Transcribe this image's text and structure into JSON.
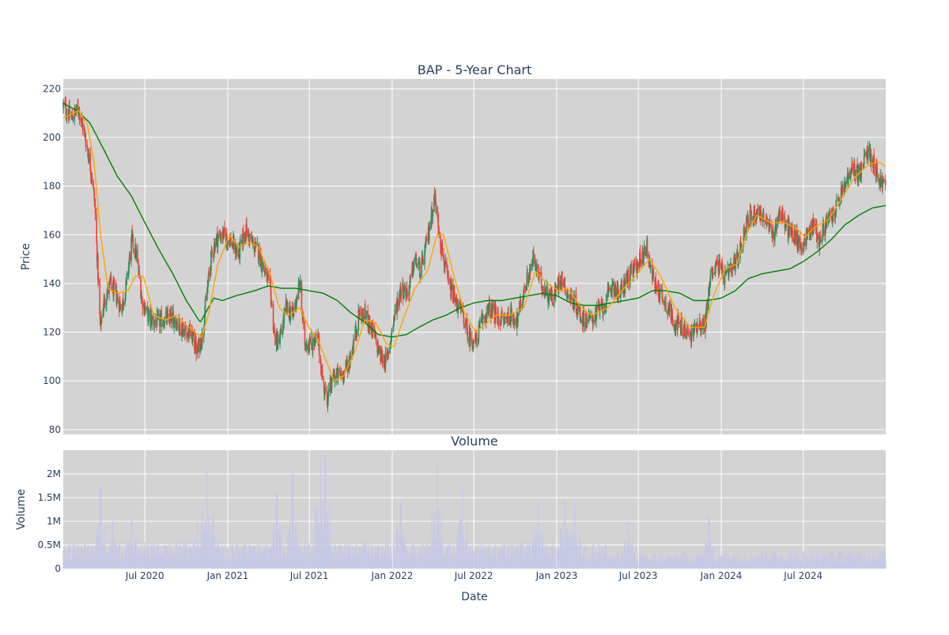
{
  "chart_data": [
    {
      "type": "candlestick",
      "title": "BAP - 5-Year Chart",
      "ylabel": "Price",
      "ylim": [
        78,
        224
      ],
      "yticks": [
        80,
        100,
        120,
        140,
        160,
        180,
        200,
        220
      ],
      "x_start": "2020-01-02",
      "x_end": "2024-12-31",
      "xtick_labels": [
        "Jul 2020",
        "Jan 2021",
        "Jul 2021",
        "Jan 2022",
        "Jul 2022",
        "Jan 2023",
        "Jul 2023",
        "Jan 2024",
        "Jul 2024"
      ],
      "xtick_dates": [
        "2020-07-01",
        "2021-01-01",
        "2021-07-01",
        "2022-01-01",
        "2022-07-01",
        "2023-01-01",
        "2023-07-01",
        "2024-01-01",
        "2024-07-01"
      ],
      "grid": true,
      "colors": {
        "up": "#2e8b57",
        "down": "#ef4136",
        "ma_short": "#ffa500",
        "ma_long": "#008000",
        "plot_bg": "#d3d3d3",
        "grid": "#ffffff"
      },
      "close_keypoints": [
        [
          "2020-01-02",
          213
        ],
        [
          "2020-01-20",
          208
        ],
        [
          "2020-02-05",
          212
        ],
        [
          "2020-02-20",
          200
        ],
        [
          "2020-03-05",
          185
        ],
        [
          "2020-03-12",
          172
        ],
        [
          "2020-03-18",
          148
        ],
        [
          "2020-03-24",
          122
        ],
        [
          "2020-04-01",
          132
        ],
        [
          "2020-04-15",
          140
        ],
        [
          "2020-04-28",
          135
        ],
        [
          "2020-05-10",
          130
        ],
        [
          "2020-05-20",
          138
        ],
        [
          "2020-06-02",
          158
        ],
        [
          "2020-06-12",
          152
        ],
        [
          "2020-06-25",
          133
        ],
        [
          "2020-07-10",
          126
        ],
        [
          "2020-07-25",
          124
        ],
        [
          "2020-08-15",
          125
        ],
        [
          "2020-09-01",
          126
        ],
        [
          "2020-09-20",
          122
        ],
        [
          "2020-10-10",
          120
        ],
        [
          "2020-10-25",
          112
        ],
        [
          "2020-11-05",
          118
        ],
        [
          "2020-11-15",
          135
        ],
        [
          "2020-11-25",
          150
        ],
        [
          "2020-12-05",
          158
        ],
        [
          "2020-12-20",
          160
        ],
        [
          "2021-01-05",
          158
        ],
        [
          "2021-01-25",
          152
        ],
        [
          "2021-02-10",
          162
        ],
        [
          "2021-02-25",
          156
        ],
        [
          "2021-03-10",
          153
        ],
        [
          "2021-03-20",
          147
        ],
        [
          "2021-04-05",
          138
        ],
        [
          "2021-04-15",
          118
        ],
        [
          "2021-04-25",
          115
        ],
        [
          "2021-05-10",
          130
        ],
        [
          "2021-05-25",
          127
        ],
        [
          "2021-06-10",
          140
        ],
        [
          "2021-06-20",
          116
        ],
        [
          "2021-07-05",
          115
        ],
        [
          "2021-07-20",
          117
        ],
        [
          "2021-08-01",
          98
        ],
        [
          "2021-08-10",
          93
        ],
        [
          "2021-08-25",
          102
        ],
        [
          "2021-09-15",
          103
        ],
        [
          "2021-10-01",
          110
        ],
        [
          "2021-10-20",
          128
        ],
        [
          "2021-11-05",
          126
        ],
        [
          "2021-11-20",
          120
        ],
        [
          "2021-12-05",
          110
        ],
        [
          "2021-12-20",
          108
        ],
        [
          "2022-01-05",
          126
        ],
        [
          "2022-01-20",
          138
        ],
        [
          "2022-02-05",
          136
        ],
        [
          "2022-02-20",
          150
        ],
        [
          "2022-03-05",
          145
        ],
        [
          "2022-03-20",
          158
        ],
        [
          "2022-04-05",
          176
        ],
        [
          "2022-04-20",
          155
        ],
        [
          "2022-05-05",
          140
        ],
        [
          "2022-05-20",
          133
        ],
        [
          "2022-06-05",
          128
        ],
        [
          "2022-06-20",
          118
        ],
        [
          "2022-07-05",
          116
        ],
        [
          "2022-07-20",
          125
        ],
        [
          "2022-08-05",
          130
        ],
        [
          "2022-08-20",
          126
        ],
        [
          "2022-09-05",
          125
        ],
        [
          "2022-09-20",
          127
        ],
        [
          "2022-10-05",
          125
        ],
        [
          "2022-10-25",
          140
        ],
        [
          "2022-11-10",
          150
        ],
        [
          "2022-11-25",
          141
        ],
        [
          "2022-12-10",
          136
        ],
        [
          "2022-12-25",
          134
        ],
        [
          "2023-01-10",
          143
        ],
        [
          "2023-01-25",
          136
        ],
        [
          "2023-02-10",
          132
        ],
        [
          "2023-02-25",
          126
        ],
        [
          "2023-03-15",
          125
        ],
        [
          "2023-04-01",
          128
        ],
        [
          "2023-04-20",
          132
        ],
        [
          "2023-05-05",
          140
        ],
        [
          "2023-05-20",
          135
        ],
        [
          "2023-06-05",
          142
        ],
        [
          "2023-06-20",
          145
        ],
        [
          "2023-07-05",
          150
        ],
        [
          "2023-07-20",
          155
        ],
        [
          "2023-08-05",
          140
        ],
        [
          "2023-08-20",
          136
        ],
        [
          "2023-09-05",
          130
        ],
        [
          "2023-09-20",
          124
        ],
        [
          "2023-10-05",
          122
        ],
        [
          "2023-10-25",
          118
        ],
        [
          "2023-11-10",
          124
        ],
        [
          "2023-11-25",
          122
        ],
        [
          "2023-12-10",
          145
        ],
        [
          "2023-12-25",
          148
        ],
        [
          "2024-01-10",
          142
        ],
        [
          "2024-01-25",
          146
        ],
        [
          "2024-02-10",
          152
        ],
        [
          "2024-02-25",
          165
        ],
        [
          "2024-03-10",
          168
        ],
        [
          "2024-03-25",
          170
        ],
        [
          "2024-04-10",
          165
        ],
        [
          "2024-04-25",
          160
        ],
        [
          "2024-05-10",
          170
        ],
        [
          "2024-05-25",
          163
        ],
        [
          "2024-06-10",
          160
        ],
        [
          "2024-06-25",
          155
        ],
        [
          "2024-07-10",
          160
        ],
        [
          "2024-07-25",
          165
        ],
        [
          "2024-08-05",
          157
        ],
        [
          "2024-08-20",
          165
        ],
        [
          "2024-09-05",
          168
        ],
        [
          "2024-09-20",
          175
        ],
        [
          "2024-10-05",
          182
        ],
        [
          "2024-10-20",
          187
        ],
        [
          "2024-11-05",
          185
        ],
        [
          "2024-11-20",
          195
        ],
        [
          "2024-12-05",
          190
        ],
        [
          "2024-12-15",
          183
        ],
        [
          "2024-12-31",
          180
        ]
      ],
      "ma_short_keypoints": [
        [
          "2020-01-02",
          208
        ],
        [
          "2020-02-05",
          211
        ],
        [
          "2020-02-25",
          205
        ],
        [
          "2020-03-10",
          190
        ],
        [
          "2020-03-25",
          160
        ],
        [
          "2020-04-10",
          138
        ],
        [
          "2020-05-01",
          136
        ],
        [
          "2020-05-25",
          137
        ],
        [
          "2020-06-10",
          143
        ],
        [
          "2020-06-28",
          143
        ],
        [
          "2020-07-20",
          127
        ],
        [
          "2020-08-15",
          125
        ],
        [
          "2020-09-10",
          127
        ],
        [
          "2020-09-30",
          123
        ],
        [
          "2020-10-20",
          120
        ],
        [
          "2020-11-05",
          118
        ],
        [
          "2020-11-20",
          128
        ],
        [
          "2020-12-10",
          148
        ],
        [
          "2021-01-05",
          160
        ],
        [
          "2021-01-25",
          155
        ],
        [
          "2021-02-20",
          157
        ],
        [
          "2021-03-10",
          155
        ],
        [
          "2021-04-05",
          144
        ],
        [
          "2021-04-25",
          130
        ],
        [
          "2021-05-15",
          127
        ],
        [
          "2021-06-10",
          130
        ],
        [
          "2021-06-30",
          122
        ],
        [
          "2021-07-20",
          117
        ],
        [
          "2021-08-10",
          107
        ],
        [
          "2021-08-25",
          100
        ],
        [
          "2021-09-15",
          102
        ],
        [
          "2021-10-10",
          112
        ],
        [
          "2021-11-01",
          125
        ],
        [
          "2021-11-25",
          124
        ],
        [
          "2021-12-20",
          115
        ],
        [
          "2022-01-05",
          114
        ],
        [
          "2022-01-25",
          125
        ],
        [
          "2022-02-20",
          138
        ],
        [
          "2022-03-20",
          145
        ],
        [
          "2022-04-10",
          160
        ],
        [
          "2022-04-25",
          160
        ],
        [
          "2022-05-15",
          145
        ],
        [
          "2022-06-10",
          128
        ],
        [
          "2022-07-05",
          120
        ],
        [
          "2022-07-25",
          123
        ],
        [
          "2022-08-20",
          127
        ],
        [
          "2022-09-20",
          127
        ],
        [
          "2022-10-20",
          130
        ],
        [
          "2022-11-15",
          145
        ],
        [
          "2022-12-10",
          140
        ],
        [
          "2023-01-05",
          137
        ],
        [
          "2023-01-25",
          138
        ],
        [
          "2023-02-25",
          130
        ],
        [
          "2023-03-20",
          127
        ],
        [
          "2023-04-25",
          130
        ],
        [
          "2023-05-25",
          137
        ],
        [
          "2023-06-25",
          143
        ],
        [
          "2023-07-25",
          150
        ],
        [
          "2023-08-20",
          143
        ],
        [
          "2023-09-20",
          130
        ],
        [
          "2023-10-25",
          122
        ],
        [
          "2023-11-25",
          122
        ],
        [
          "2023-12-15",
          135
        ],
        [
          "2024-01-10",
          146
        ],
        [
          "2024-02-05",
          148
        ],
        [
          "2024-02-25",
          160
        ],
        [
          "2024-03-20",
          168
        ],
        [
          "2024-04-20",
          165
        ],
        [
          "2024-05-20",
          165
        ],
        [
          "2024-06-20",
          162
        ],
        [
          "2024-07-05",
          159
        ],
        [
          "2024-07-25",
          163
        ],
        [
          "2024-08-25",
          166
        ],
        [
          "2024-09-25",
          175
        ],
        [
          "2024-10-25",
          184
        ],
        [
          "2024-11-25",
          189
        ],
        [
          "2024-12-15",
          190
        ],
        [
          "2024-12-31",
          188
        ]
      ],
      "ma_long_keypoints": [
        [
          "2020-01-02",
          214
        ],
        [
          "2020-02-01",
          211
        ],
        [
          "2020-03-01",
          206
        ],
        [
          "2020-04-01",
          195
        ],
        [
          "2020-05-01",
          184
        ],
        [
          "2020-06-01",
          176
        ],
        [
          "2020-07-01",
          165
        ],
        [
          "2020-08-01",
          154
        ],
        [
          "2020-09-01",
          144
        ],
        [
          "2020-10-01",
          133
        ],
        [
          "2020-11-01",
          124
        ],
        [
          "2020-12-01",
          134
        ],
        [
          "2020-12-20",
          133
        ],
        [
          "2021-01-20",
          135
        ],
        [
          "2021-03-01",
          137
        ],
        [
          "2021-04-01",
          139
        ],
        [
          "2021-05-01",
          138
        ],
        [
          "2021-06-01",
          138
        ],
        [
          "2021-07-01",
          137
        ],
        [
          "2021-08-01",
          136
        ],
        [
          "2021-09-01",
          133
        ],
        [
          "2021-10-01",
          128
        ],
        [
          "2021-11-01",
          124
        ],
        [
          "2021-12-01",
          119
        ],
        [
          "2022-01-01",
          118
        ],
        [
          "2022-02-01",
          119
        ],
        [
          "2022-03-01",
          122
        ],
        [
          "2022-04-01",
          125
        ],
        [
          "2022-05-01",
          127
        ],
        [
          "2022-06-01",
          130
        ],
        [
          "2022-07-01",
          132
        ],
        [
          "2022-08-01",
          133
        ],
        [
          "2022-09-01",
          133
        ],
        [
          "2022-10-01",
          134
        ],
        [
          "2022-11-01",
          135
        ],
        [
          "2022-12-01",
          136
        ],
        [
          "2023-01-01",
          135
        ],
        [
          "2023-02-01",
          132
        ],
        [
          "2023-03-01",
          131
        ],
        [
          "2023-04-01",
          131
        ],
        [
          "2023-05-01",
          132
        ],
        [
          "2023-06-01",
          133
        ],
        [
          "2023-07-01",
          134
        ],
        [
          "2023-08-01",
          137
        ],
        [
          "2023-09-01",
          137
        ],
        [
          "2023-10-01",
          136
        ],
        [
          "2023-11-01",
          133
        ],
        [
          "2023-12-01",
          133
        ],
        [
          "2024-01-01",
          134
        ],
        [
          "2024-02-01",
          137
        ],
        [
          "2024-03-01",
          142
        ],
        [
          "2024-04-01",
          144
        ],
        [
          "2024-05-01",
          145
        ],
        [
          "2024-06-01",
          146
        ],
        [
          "2024-07-01",
          149
        ],
        [
          "2024-08-01",
          153
        ],
        [
          "2024-09-01",
          158
        ],
        [
          "2024-10-01",
          164
        ],
        [
          "2024-11-01",
          168
        ],
        [
          "2024-12-01",
          171
        ],
        [
          "2024-12-31",
          172
        ]
      ]
    },
    {
      "type": "bar",
      "title": "Volume",
      "xlabel": "Date",
      "ylabel": "Volume",
      "ylim": [
        0,
        2500000
      ],
      "yticks": [
        0,
        500000,
        1000000,
        1500000,
        2000000
      ],
      "ytick_labels": [
        "0",
        "0.5M",
        "1M",
        "1.5M",
        "2M"
      ],
      "xtick_labels": [
        "Jul 2020",
        "Jan 2021",
        "Jul 2021",
        "Jan 2022",
        "Jul 2022",
        "Jan 2023",
        "Jul 2023",
        "Jan 2024",
        "Jul 2024"
      ],
      "xtick_dates": [
        "2020-07-01",
        "2021-01-01",
        "2021-07-01",
        "2022-01-01",
        "2022-07-01",
        "2023-01-01",
        "2023-07-01",
        "2024-01-01",
        "2024-07-01"
      ],
      "bar_color": "#c5c8e8",
      "grid": true,
      "volume_spikes": [
        [
          "2020-03-25",
          1700000
        ],
        [
          "2020-04-20",
          1000000
        ],
        [
          "2020-06-01",
          1050000
        ],
        [
          "2020-10-25",
          1050000
        ],
        [
          "2020-11-15",
          2100000
        ],
        [
          "2020-11-30",
          1200000
        ],
        [
          "2021-04-20",
          1600000
        ],
        [
          "2021-05-25",
          2000000
        ],
        [
          "2021-07-25",
          2300000
        ],
        [
          "2021-08-05",
          2400000
        ],
        [
          "2022-01-20",
          1400000
        ],
        [
          "2022-04-10",
          2200000
        ],
        [
          "2022-06-05",
          1750000
        ],
        [
          "2022-11-20",
          1450000
        ],
        [
          "2023-01-20",
          1450000
        ],
        [
          "2023-02-10",
          1350000
        ],
        [
          "2023-06-10",
          1000000
        ],
        [
          "2023-12-05",
          1100000
        ]
      ]
    }
  ]
}
